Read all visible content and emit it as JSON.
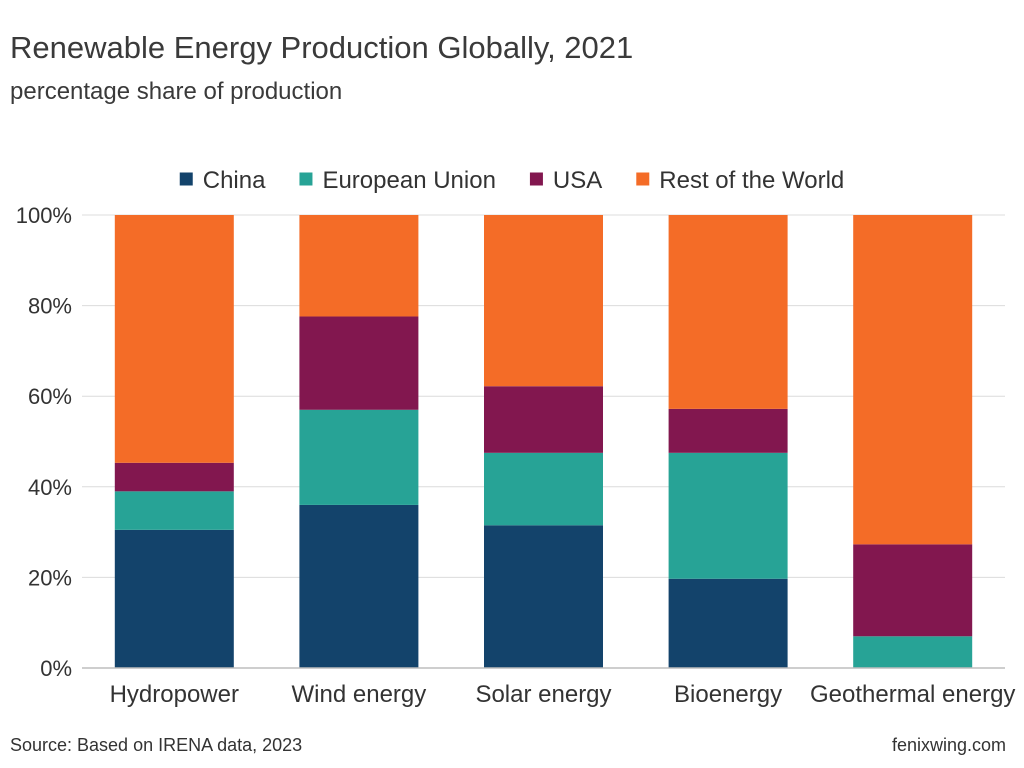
{
  "header": {
    "title": "Renewable Energy Production Globally, 2021",
    "subtitle": "percentage share of production"
  },
  "footer": {
    "source": "Source: Based on IRENA data, 2023",
    "brand": "fenixwing.com"
  },
  "chart_data": {
    "type": "bar",
    "stacked": true,
    "title": "Renewable Energy Production Globally, 2021",
    "subtitle": "percentage share of production",
    "categories": [
      "Hydropower",
      "Wind energy",
      "Solar energy",
      "Bioenergy",
      "Geothermal energy"
    ],
    "series": [
      {
        "name": "China",
        "color": "#13436b",
        "values": [
          30.5,
          36,
          31.5,
          19.7,
          0
        ]
      },
      {
        "name": "European Union",
        "color": "#27a396",
        "values": [
          8.5,
          21,
          16,
          27.8,
          7
        ]
      },
      {
        "name": "USA",
        "color": "#82174f",
        "values": [
          6.3,
          20.6,
          14.7,
          9.7,
          20.3
        ]
      },
      {
        "name": "Rest of the World",
        "color": "#f46c27",
        "values": [
          54.7,
          22.4,
          37.8,
          42.8,
          72.7
        ]
      }
    ],
    "ylim": [
      0,
      100
    ],
    "yticks": [
      "0%",
      "20%",
      "40%",
      "60%",
      "80%",
      "100%"
    ],
    "ytick_values": [
      0,
      20,
      40,
      60,
      80,
      100
    ],
    "grid": true,
    "legend": "top"
  }
}
